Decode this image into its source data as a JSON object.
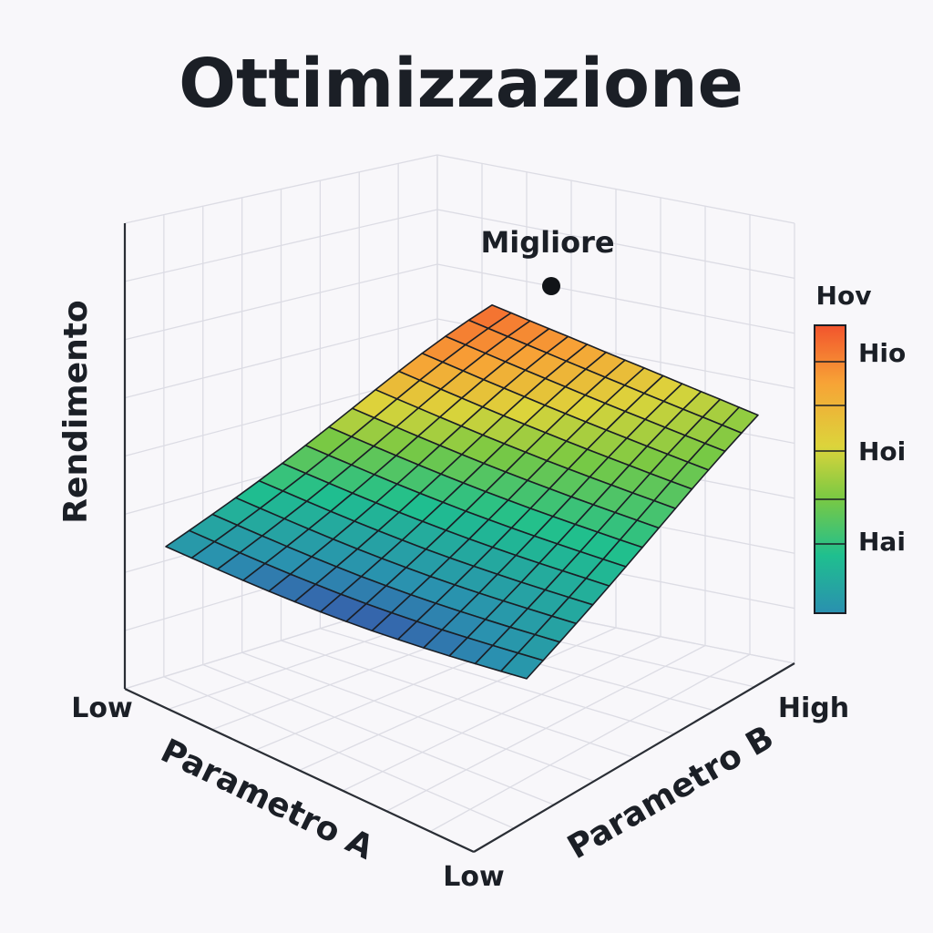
{
  "chart_data": {
    "type": "surface",
    "title": "Ottimizzazione",
    "zlabel": "Rendimento",
    "xlabel": "Parametro A",
    "ylabel": "Parametro B",
    "x_ticks": [
      "Low"
    ],
    "y_ticks": [
      "Low",
      "High"
    ],
    "annotation": {
      "label": "Migliore"
    },
    "colorbar": {
      "title": "Hov",
      "labels": [
        "Hio",
        "Hoi",
        "Hai"
      ],
      "colors": [
        "#f2542d",
        "#f7a336",
        "#dcd43b",
        "#7ac943",
        "#1fbf8f",
        "#2a90b0"
      ]
    },
    "grid": true,
    "surface": {
      "description_shape": "rising ridge peaking at high Parametro B, low Parametro A",
      "z_min": 0,
      "z_max": 1,
      "peak": {
        "a": 0,
        "b": 1,
        "z": 1
      }
    }
  }
}
